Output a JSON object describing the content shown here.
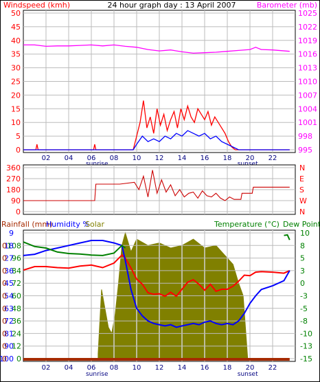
{
  "chart_data": [
    {
      "type": "line",
      "title": "24 hour graph day : 13 April 2007",
      "left_axis_label": "Windspeed (kmh)",
      "right_axis_label": "Barometer (mb)",
      "x_ticks": [
        "02",
        "04",
        "06",
        "08",
        "10",
        "12",
        "14",
        "16",
        "18",
        "20",
        "22"
      ],
      "sunrise_label": "sunrise",
      "sunset_label": "sunset",
      "sunrise_hour": 6.5,
      "sunset_hour": 19.8,
      "left_ticks": [
        0,
        5,
        10,
        15,
        20,
        25,
        30,
        35,
        40,
        45,
        50
      ],
      "left_range": [
        0,
        50
      ],
      "right_ticks": [
        995,
        998,
        1001,
        1004,
        1007,
        1010,
        1013,
        1016,
        1019,
        1022,
        1025
      ],
      "right_range": [
        995,
        1025
      ],
      "grid": true,
      "series": [
        {
          "role": "barometer",
          "color": "#ff00ff",
          "axis": "right",
          "x": [
            0,
            1,
            2,
            3,
            4,
            5,
            6,
            7,
            8,
            9,
            10,
            11,
            12,
            13,
            14,
            15,
            16,
            17,
            18,
            19,
            20,
            20.5,
            21,
            22,
            23.5
          ],
          "y": [
            1018,
            1018,
            1017.7,
            1017.8,
            1017.8,
            1017.9,
            1018,
            1017.8,
            1018,
            1017.7,
            1017.5,
            1017,
            1016.7,
            1016.9,
            1016.5,
            1016.2,
            1016.3,
            1016.4,
            1016.6,
            1016.8,
            1017,
            1017.5,
            1017,
            1016.9,
            1016.6
          ]
        },
        {
          "role": "gust",
          "color": "#ff0000",
          "axis": "left",
          "x": [
            0,
            1.1,
            1.2,
            1.3,
            6.2,
            6.3,
            6.4,
            6.5,
            9.7,
            10,
            10.3,
            10.6,
            10.9,
            11.2,
            11.5,
            11.8,
            12.1,
            12.4,
            12.7,
            13,
            13.3,
            13.6,
            13.9,
            14.2,
            14.5,
            14.8,
            15.1,
            15.4,
            15.7,
            16,
            16.3,
            16.6,
            16.9,
            17.2,
            17.5,
            17.8,
            18.1,
            18.4,
            18.7,
            23.5
          ],
          "y": [
            0,
            0,
            2,
            0,
            0,
            2,
            0,
            0,
            0,
            5,
            10,
            18,
            8,
            12,
            6,
            15,
            9,
            13,
            7,
            11,
            14,
            8,
            15,
            11,
            16,
            12,
            10,
            15,
            13,
            11,
            14,
            9,
            12,
            10,
            8,
            6,
            3,
            1,
            0,
            0
          ]
        },
        {
          "role": "average",
          "color": "#0000ff",
          "axis": "left",
          "x": [
            0,
            9.7,
            10,
            10.5,
            11,
            11.5,
            12,
            12.5,
            13,
            13.5,
            14,
            14.5,
            15,
            15.5,
            16,
            16.5,
            17,
            17.5,
            18,
            18.5,
            19,
            23.5
          ],
          "y": [
            0,
            0,
            2,
            5,
            3,
            4,
            3,
            5,
            4,
            6,
            5,
            7,
            6,
            5,
            6,
            4,
            5,
            3,
            2,
            1,
            0,
            0
          ]
        }
      ]
    },
    {
      "type": "line",
      "role": "wind-direction",
      "left_ticks": [
        0,
        90,
        180,
        270,
        360
      ],
      "left_range": [
        0,
        360
      ],
      "right_ticks": [
        "N",
        "E",
        "S",
        "W",
        "N"
      ],
      "color": "#cc0000",
      "x": [
        0,
        6.3,
        6.4,
        8.5,
        9.8,
        10.2,
        10.6,
        11,
        11.4,
        11.8,
        12.2,
        12.6,
        13,
        13.4,
        13.8,
        14.2,
        14.6,
        15,
        15.4,
        15.8,
        16.2,
        16.6,
        17,
        17.4,
        17.8,
        18.2,
        18.6,
        19.2,
        19.3,
        20.2,
        20.3,
        23.5
      ],
      "y": [
        90,
        90,
        225,
        225,
        240,
        180,
        290,
        120,
        340,
        150,
        260,
        160,
        220,
        130,
        180,
        120,
        150,
        160,
        110,
        170,
        130,
        120,
        150,
        110,
        90,
        120,
        100,
        100,
        150,
        150,
        200,
        200
      ]
    },
    {
      "type": "line",
      "left_axis_label": "Rainfall (mm)",
      "humidity_label": "Humidity %",
      "solar_label": "Solar",
      "right_axis_label": "Temperature (°C)",
      "dew_label": "Dew Point",
      "rain_ticks": [
        0,
        0,
        0,
        0,
        0,
        0,
        0,
        0,
        0,
        0
      ],
      "humidity_ticks": [
        9,
        18,
        27,
        36,
        45,
        54,
        63,
        72,
        81,
        90,
        100
      ],
      "solar_ticks": [
        0,
        12,
        24,
        36,
        48,
        60,
        72,
        84,
        96,
        108
      ],
      "temp_ticks": [
        -15,
        -13,
        -10,
        -8,
        -5,
        -3,
        0,
        3,
        5,
        8,
        10
      ],
      "temp_range": [
        -15,
        10
      ],
      "series": [
        {
          "role": "solar",
          "color": "#808000",
          "kind": "area",
          "x": [
            6.6,
            6.9,
            7.2,
            7.5,
            7.8,
            8.1,
            8.4,
            8.7,
            9.0,
            9.5,
            10,
            11,
            12,
            13,
            14,
            15,
            16,
            17,
            18,
            18.5,
            19,
            19.4,
            19.8
          ],
          "y": [
            4,
            55,
            40,
            25,
            20,
            35,
            60,
            90,
            100,
            85,
            95,
            90,
            92,
            88,
            90,
            95,
            88,
            90,
            80,
            75,
            60,
            50,
            0
          ]
        },
        {
          "role": "temperature",
          "color": "#ff0000",
          "x": [
            0,
            1,
            2,
            3,
            4,
            5,
            6,
            7,
            8,
            8.7,
            9,
            9.5,
            10,
            10.5,
            11,
            11.5,
            12,
            12.5,
            13,
            13.5,
            14,
            14.5,
            15,
            15.5,
            16,
            16.5,
            17,
            17.5,
            18,
            18.5,
            19,
            19.5,
            20,
            20.5,
            21,
            22,
            23,
            23.5
          ],
          "y": [
            2.6,
            3.3,
            3.3,
            3.1,
            3,
            3.4,
            3.6,
            3.1,
            4,
            5.6,
            5,
            3,
            0.8,
            -0.2,
            -1.9,
            -2.2,
            -2.1,
            -2.6,
            -1.8,
            -2.6,
            -1.2,
            0.2,
            0.7,
            -0.2,
            -1.4,
            -0.2,
            -1.6,
            -1.2,
            -1.2,
            -0.6,
            0.4,
            1.6,
            1.5,
            2.2,
            2.3,
            2.2,
            2,
            2.5
          ]
        },
        {
          "role": "humidity",
          "color": "#0000ff",
          "x": [
            0,
            1,
            2,
            3,
            4,
            5,
            6,
            7,
            8,
            8.7,
            9,
            9.5,
            10,
            10.5,
            11,
            11.5,
            12,
            12.5,
            13,
            13.5,
            14,
            14.5,
            15,
            15.5,
            16,
            16.5,
            17,
            17.5,
            18,
            18.5,
            19,
            19.5,
            20,
            20.5,
            21,
            22,
            23,
            23.5
          ],
          "y": [
            82,
            83,
            86,
            88,
            90,
            92,
            94,
            94,
            92,
            90,
            78,
            55,
            40,
            34,
            30,
            28,
            27,
            26,
            27,
            25,
            26,
            27,
            28,
            27,
            29,
            30,
            28,
            27,
            28,
            27,
            30,
            36,
            44,
            50,
            55,
            58,
            62,
            70
          ]
        },
        {
          "role": "dew-point",
          "color": "#008000",
          "x": [
            0,
            1,
            2,
            3,
            4,
            5,
            6,
            7,
            8,
            8.7,
            9
          ],
          "y": [
            8.2,
            7.3,
            7,
            6.2,
            5.9,
            5.8,
            5.6,
            5.5,
            6,
            7.5,
            7
          ]
        },
        {
          "role": "dew-point-end",
          "color": "#008000",
          "x": [
            23,
            23.3,
            23.5
          ],
          "y": [
            9.5,
            9.6,
            8.6
          ]
        },
        {
          "role": "rainfall",
          "color": "#a52a00",
          "x": [
            0,
            23.5
          ],
          "y": [
            0,
            0
          ]
        }
      ]
    }
  ]
}
